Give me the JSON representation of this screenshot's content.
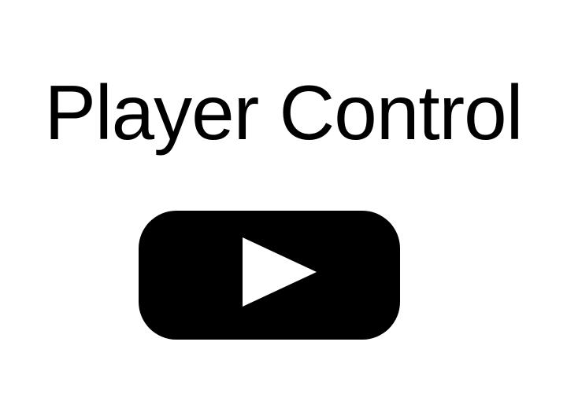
{
  "title": "Player Control",
  "play_button": {
    "icon": "play-icon",
    "body_color": "#000000",
    "triangle_color": "#ffffff"
  }
}
